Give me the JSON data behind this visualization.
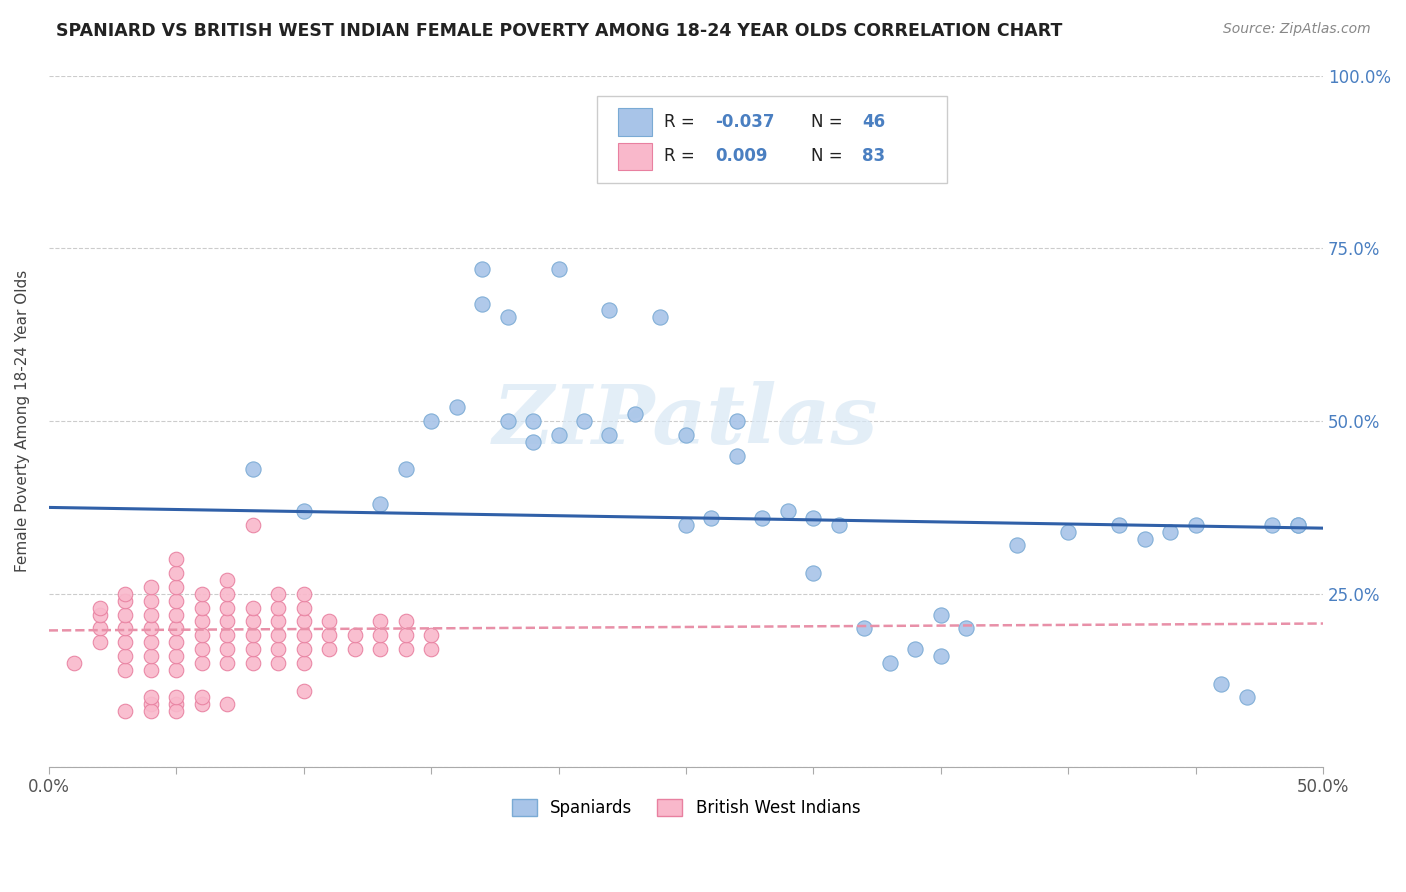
{
  "title": "SPANIARD VS BRITISH WEST INDIAN FEMALE POVERTY AMONG 18-24 YEAR OLDS CORRELATION CHART",
  "source": "Source: ZipAtlas.com",
  "ylabel": "Female Poverty Among 18-24 Year Olds",
  "xlim": [
    0.0,
    0.5
  ],
  "ylim": [
    0.0,
    1.0
  ],
  "xtick_vals": [
    0.0,
    0.05,
    0.1,
    0.15,
    0.2,
    0.25,
    0.3,
    0.35,
    0.4,
    0.45,
    0.5
  ],
  "xtick_labels": [
    "0.0%",
    "",
    "",
    "",
    "",
    "",
    "",
    "",
    "",
    "",
    "50.0%"
  ],
  "ytick_vals": [
    0.0,
    0.25,
    0.5,
    0.75,
    1.0
  ],
  "ytick_labels_right": [
    "",
    "25.0%",
    "50.0%",
    "75.0%",
    "100.0%"
  ],
  "legend_r_blue": "-0.037",
  "legend_n_blue": "46",
  "legend_r_pink": "0.009",
  "legend_n_pink": "83",
  "blue_color": "#a8c4e8",
  "blue_edge": "#7aaad4",
  "pink_color": "#f9b8cb",
  "pink_edge": "#e880a0",
  "trend_blue_color": "#3060a8",
  "trend_pink_color": "#e890a8",
  "watermark": "ZIPatlas",
  "spaniards_x": [
    0.08,
    0.1,
    0.13,
    0.14,
    0.15,
    0.16,
    0.17,
    0.17,
    0.18,
    0.18,
    0.19,
    0.19,
    0.2,
    0.2,
    0.21,
    0.22,
    0.22,
    0.23,
    0.24,
    0.25,
    0.25,
    0.26,
    0.27,
    0.27,
    0.28,
    0.29,
    0.3,
    0.3,
    0.31,
    0.32,
    0.33,
    0.34,
    0.35,
    0.35,
    0.36,
    0.38,
    0.4,
    0.42,
    0.43,
    0.44,
    0.45,
    0.46,
    0.47,
    0.48,
    0.49,
    0.49
  ],
  "spaniards_y": [
    0.43,
    0.37,
    0.38,
    0.43,
    0.5,
    0.52,
    0.67,
    0.72,
    0.5,
    0.65,
    0.47,
    0.5,
    0.48,
    0.72,
    0.5,
    0.48,
    0.66,
    0.51,
    0.65,
    0.48,
    0.35,
    0.36,
    0.5,
    0.45,
    0.36,
    0.37,
    0.36,
    0.28,
    0.35,
    0.2,
    0.15,
    0.17,
    0.16,
    0.22,
    0.2,
    0.32,
    0.34,
    0.35,
    0.33,
    0.34,
    0.35,
    0.12,
    0.1,
    0.35,
    0.35,
    0.35
  ],
  "bwi_x": [
    0.01,
    0.02,
    0.02,
    0.02,
    0.02,
    0.03,
    0.03,
    0.03,
    0.03,
    0.03,
    0.03,
    0.03,
    0.04,
    0.04,
    0.04,
    0.04,
    0.04,
    0.04,
    0.04,
    0.05,
    0.05,
    0.05,
    0.05,
    0.05,
    0.05,
    0.05,
    0.05,
    0.05,
    0.06,
    0.06,
    0.06,
    0.06,
    0.06,
    0.06,
    0.07,
    0.07,
    0.07,
    0.07,
    0.07,
    0.07,
    0.07,
    0.08,
    0.08,
    0.08,
    0.08,
    0.08,
    0.09,
    0.09,
    0.09,
    0.09,
    0.09,
    0.09,
    0.1,
    0.1,
    0.1,
    0.1,
    0.1,
    0.1,
    0.11,
    0.11,
    0.11,
    0.12,
    0.12,
    0.13,
    0.13,
    0.13,
    0.14,
    0.14,
    0.14,
    0.15,
    0.15,
    0.08,
    0.04,
    0.05,
    0.03,
    0.04,
    0.05,
    0.06,
    0.07,
    0.04,
    0.05,
    0.06,
    0.1
  ],
  "bwi_y": [
    0.15,
    0.18,
    0.2,
    0.22,
    0.23,
    0.14,
    0.16,
    0.18,
    0.2,
    0.22,
    0.24,
    0.25,
    0.14,
    0.16,
    0.18,
    0.2,
    0.22,
    0.24,
    0.26,
    0.14,
    0.16,
    0.18,
    0.2,
    0.22,
    0.24,
    0.26,
    0.28,
    0.3,
    0.15,
    0.17,
    0.19,
    0.21,
    0.23,
    0.25,
    0.15,
    0.17,
    0.19,
    0.21,
    0.23,
    0.25,
    0.27,
    0.15,
    0.17,
    0.19,
    0.21,
    0.23,
    0.15,
    0.17,
    0.19,
    0.21,
    0.23,
    0.25,
    0.15,
    0.17,
    0.19,
    0.21,
    0.23,
    0.25,
    0.17,
    0.19,
    0.21,
    0.17,
    0.19,
    0.17,
    0.19,
    0.21,
    0.17,
    0.19,
    0.21,
    0.17,
    0.19,
    0.35,
    0.09,
    0.09,
    0.08,
    0.08,
    0.08,
    0.09,
    0.09,
    0.1,
    0.1,
    0.1,
    0.11
  ],
  "blue_trend_x0": 0.0,
  "blue_trend_y0": 0.375,
  "blue_trend_x1": 0.5,
  "blue_trend_y1": 0.345,
  "pink_trend_x0": 0.0,
  "pink_trend_y0": 0.197,
  "pink_trend_x1": 0.5,
  "pink_trend_y1": 0.207
}
